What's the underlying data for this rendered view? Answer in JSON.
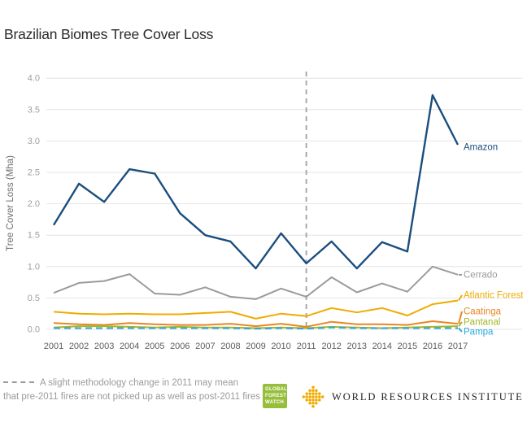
{
  "header": {
    "title": "Brazilian Biomes Tree Cover Loss"
  },
  "chart_data": {
    "type": "line",
    "title": "Brazilian Biomes Tree Cover Loss",
    "xlabel": "",
    "ylabel": "Tree Cover Loss (Mha)",
    "ylim": [
      0,
      4
    ],
    "ytick_step": 0.5,
    "grid": true,
    "legend_position": "labels-at-line-ends",
    "x": [
      2001,
      2002,
      2003,
      2004,
      2005,
      2006,
      2007,
      2008,
      2009,
      2010,
      2011,
      2012,
      2013,
      2014,
      2015,
      2016,
      2017
    ],
    "series": [
      {
        "name": "Amazon",
        "color": "#1a4e7e",
        "dashed": false,
        "label_stub": false,
        "values": [
          1.66,
          2.32,
          2.03,
          2.55,
          2.48,
          1.85,
          1.5,
          1.4,
          0.97,
          1.53,
          1.05,
          1.4,
          0.97,
          1.39,
          1.24,
          3.73,
          2.94
        ]
      },
      {
        "name": "Cerrado",
        "color": "#9b9b9b",
        "dashed": false,
        "label_stub": true,
        "values": [
          0.58,
          0.74,
          0.77,
          0.88,
          0.57,
          0.55,
          0.67,
          0.52,
          0.48,
          0.65,
          0.52,
          0.83,
          0.59,
          0.73,
          0.6,
          1.0,
          0.87
        ]
      },
      {
        "name": "Atlantic Forest",
        "color": "#f0ab00",
        "dashed": false,
        "label_stub": true,
        "values": [
          0.28,
          0.25,
          0.24,
          0.25,
          0.24,
          0.24,
          0.26,
          0.28,
          0.17,
          0.25,
          0.21,
          0.34,
          0.27,
          0.34,
          0.22,
          0.4,
          0.46
        ]
      },
      {
        "name": "Caatinga",
        "color": "#e98624",
        "dashed": false,
        "label_stub": true,
        "values": [
          0.1,
          0.08,
          0.07,
          0.1,
          0.08,
          0.07,
          0.07,
          0.09,
          0.05,
          0.09,
          0.04,
          0.12,
          0.08,
          0.08,
          0.07,
          0.13,
          0.09
        ]
      },
      {
        "name": "Pantanal",
        "color": "#a6b727",
        "dashed": false,
        "label_stub": true,
        "values": [
          0.03,
          0.05,
          0.05,
          0.04,
          0.03,
          0.04,
          0.03,
          0.03,
          0.02,
          0.03,
          0.02,
          0.04,
          0.03,
          0.02,
          0.03,
          0.04,
          0.05
        ]
      },
      {
        "name": "Pampa",
        "color": "#29a8df",
        "dashed": true,
        "label_stub": true,
        "values": [
          0.02,
          0.02,
          0.02,
          0.02,
          0.02,
          0.02,
          0.02,
          0.02,
          0.01,
          0.02,
          0.01,
          0.03,
          0.02,
          0.02,
          0.02,
          0.02,
          0.02
        ]
      }
    ],
    "annotations": [
      {
        "type": "vline",
        "x": 2011,
        "style": "dashed",
        "color": "#a7a9ac"
      }
    ]
  },
  "footnote": {
    "line1": "A slight methodology change in 2011 may mean",
    "line2": "that pre-2011 fires are not picked up as well as post-2011 fires"
  },
  "logos": {
    "gfw": {
      "line1": "GLOBAL",
      "line2": "FOREST",
      "line3": "WATCH"
    },
    "wri": {
      "text": "WORLD RESOURCES INSTITUTE"
    }
  }
}
